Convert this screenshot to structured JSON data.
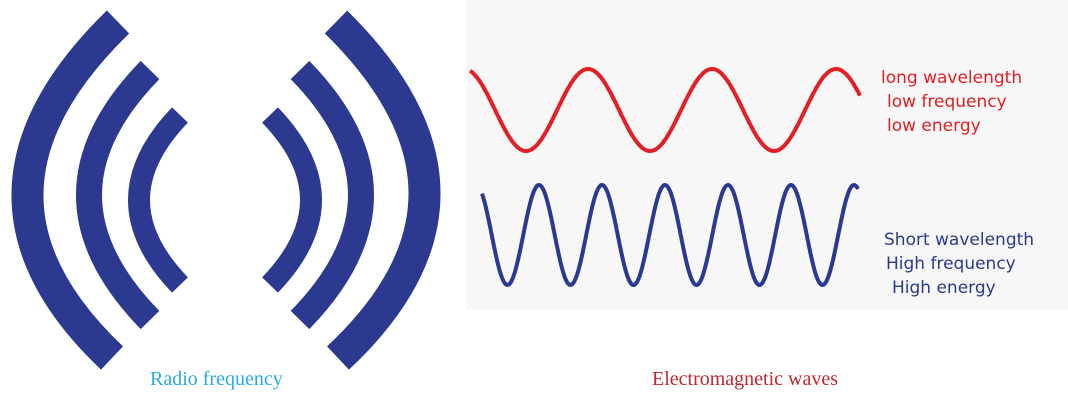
{
  "captions": {
    "radio": "Radio frequency",
    "em": "Electromagnetic waves"
  },
  "long_wave": {
    "labels": [
      "long wavelength",
      "low frequency",
      "low energy"
    ],
    "color": "#e31e24"
  },
  "short_wave": {
    "labels": [
      "Short wavelength",
      "High frequency",
      "High energy"
    ],
    "color": "#2b3990"
  },
  "radio_icon": {
    "icon": "radio-signal-icon",
    "color": "#2b3990"
  },
  "caption_colors": {
    "radio": "#29abe2",
    "em": "#c1272d"
  }
}
